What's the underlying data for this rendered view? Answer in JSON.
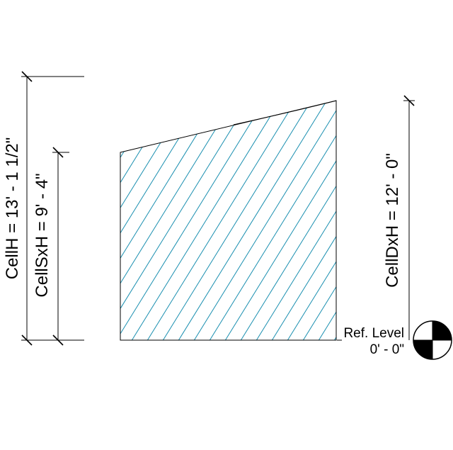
{
  "dimensions": {
    "cell_h": "CellH = 13' - 1 1/2\"",
    "cell_sxh": "CellSxH = 9' - 4\"",
    "cell_dxh": "CellDxH = 12' - 0\""
  },
  "level": {
    "name": "Ref. Level",
    "elevation": "0' - 0\""
  },
  "colors": {
    "hatch": "#1a8fb0",
    "lines": "#000000",
    "background": "#ffffff"
  },
  "icons": {
    "level_marker": "level-head-symbol"
  }
}
